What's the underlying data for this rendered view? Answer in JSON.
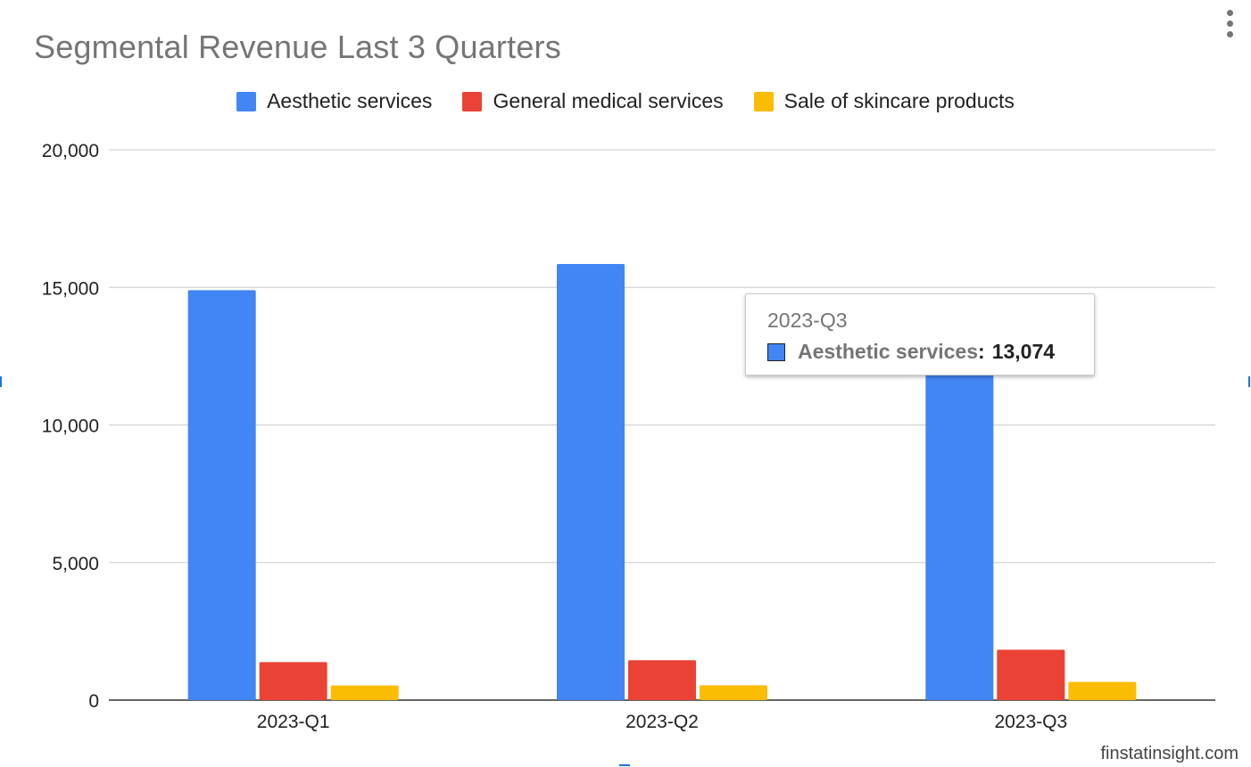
{
  "chart_data": {
    "type": "bar",
    "title": "Segmental Revenue Last 3 Quarters",
    "categories": [
      "2023-Q1",
      "2023-Q2",
      "2023-Q3"
    ],
    "series": [
      {
        "name": "Aesthetic services",
        "color": "#4285f4",
        "values": [
          14900,
          15850,
          13074
        ]
      },
      {
        "name": "General medical services",
        "color": "#ea4335",
        "values": [
          1380,
          1450,
          1830
        ]
      },
      {
        "name": "Sale of skincare products",
        "color": "#fbbc04",
        "values": [
          530,
          540,
          660
        ]
      }
    ],
    "ylim": [
      0,
      20000
    ],
    "yticks": [
      "0",
      "5,000",
      "10,000",
      "15,000",
      "20,000"
    ],
    "xlabel": "",
    "ylabel": "",
    "grid": true,
    "legend_position": "top"
  },
  "tooltip": {
    "category": "2023-Q3",
    "series": "Aesthetic services",
    "value": "13,074",
    "color": "#4285f4"
  },
  "menu": {
    "icon": "vertical-ellipsis-icon"
  },
  "watermark": "finstatinsight.com"
}
